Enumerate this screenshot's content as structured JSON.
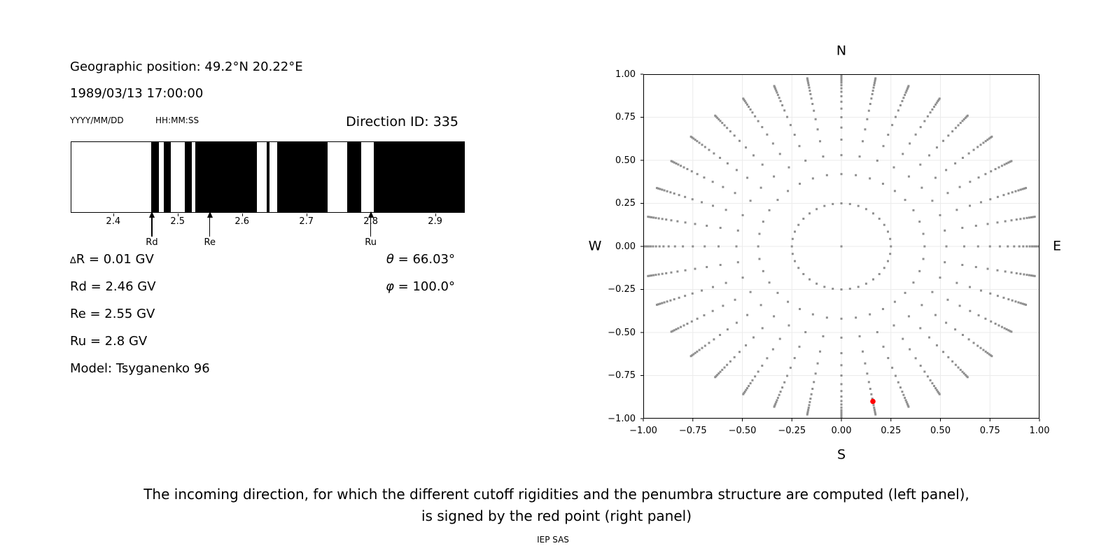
{
  "header": {
    "geo_position": "Geographic position: 49.2°N 20.22°E",
    "datetime": "1989/03/13 17:00:00",
    "date_format_label": "YYYY/MM/DD",
    "time_format_label": "HH:MM:SS",
    "direction_id": "Direction ID: 335"
  },
  "results": {
    "delta_symbol": "∆",
    "delta_r_rest": "R = 0.01 GV",
    "rd": "Rd = 2.46 GV",
    "re": "Re = 2.55 GV",
    "ru": "Ru = 2.8 GV",
    "model": "Model: Tsyganenko 96",
    "theta": "θ = 66.03°",
    "phi": "φ = 100.0°"
  },
  "caption": {
    "line1": "The incoming direction, for which the different cutoff rigidities and the penumbra structure are computed (left panel),",
    "line2": "is signed by the red point (right panel)",
    "credit": "IEP SAS"
  },
  "chart_data": [
    {
      "type": "bar",
      "name": "penumbra-structure",
      "x_range": [
        2.335,
        2.945
      ],
      "x_ticks": [
        2.4,
        2.5,
        2.6,
        2.7,
        2.8,
        2.9
      ],
      "x_tick_labels": [
        "2.4",
        "2.5",
        "2.6",
        "2.7",
        "2.8",
        "2.9"
      ],
      "forbidden_bands_gv": [
        [
          2.459,
          2.471
        ],
        [
          2.479,
          2.489
        ],
        [
          2.511,
          2.522
        ],
        [
          2.528,
          2.623
        ],
        [
          2.638,
          2.643
        ],
        [
          2.655,
          2.733
        ],
        [
          2.763,
          2.785
        ],
        [
          2.805,
          2.945
        ]
      ],
      "band_colors": {
        "forbidden": "#000000",
        "allowed": "#ffffff"
      },
      "markers": [
        {
          "label": "Rd",
          "value_gv": 2.46
        },
        {
          "label": "Re",
          "value_gv": 2.55
        },
        {
          "label": "Ru",
          "value_gv": 2.8
        }
      ]
    },
    {
      "type": "scatter",
      "name": "incoming-directions",
      "compass": {
        "top": "N",
        "bottom": "S",
        "left": "W",
        "right": "E"
      },
      "xlim": [
        -1,
        1
      ],
      "ylim": [
        -1,
        1
      ],
      "x_ticks": [
        -1,
        -0.75,
        -0.5,
        -0.25,
        0,
        0.25,
        0.5,
        0.75,
        1
      ],
      "y_ticks": [
        1,
        0.75,
        0.5,
        0.25,
        0,
        -0.25,
        -0.5,
        -0.75,
        -1
      ],
      "x_tick_labels": [
        "−1.00",
        "−0.75",
        "−0.50",
        "−0.25",
        "0.00",
        "0.25",
        "0.50",
        "0.75",
        "1.00"
      ],
      "y_tick_labels": [
        "1.00",
        "0.75",
        "0.50",
        "0.25",
        "0.00",
        "−0.25",
        "−0.50",
        "−0.75",
        "−1.00"
      ],
      "grid": true,
      "grid_color": "#ebebeb",
      "dot_color": "#8f8f8f",
      "n_spokes": 36,
      "azimuth_step_deg": 10,
      "spoke_radii": [
        0.25,
        0.42,
        0.53,
        0.62,
        0.69,
        0.75,
        0.8,
        0.84,
        0.872,
        0.898,
        0.918,
        0.936,
        0.951,
        0.963,
        0.974,
        0.983,
        0.991
      ],
      "center_point": {
        "x": 0,
        "y": 0
      },
      "highlight_point": {
        "x": 0.159,
        "y": -0.9,
        "color": "#ff0000",
        "azimuth_deg": 170,
        "radius": 0.914
      }
    }
  ]
}
